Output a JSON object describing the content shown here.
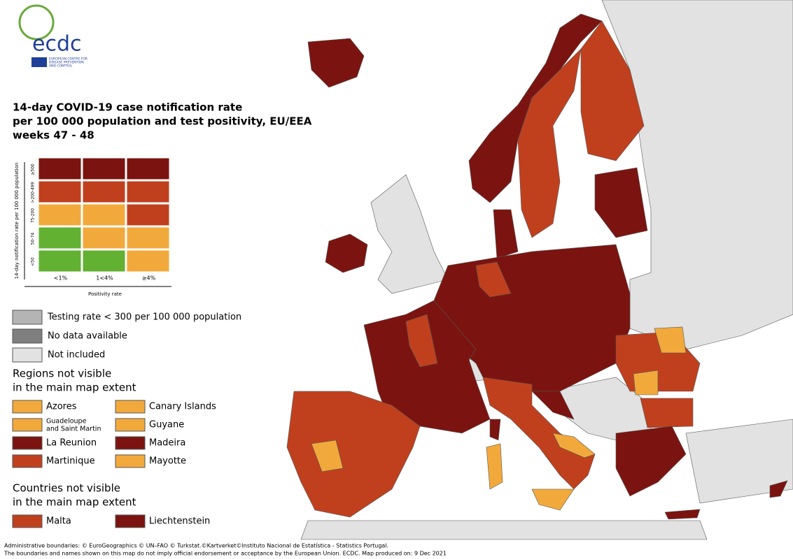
{
  "logo": {
    "name": "ecdc",
    "subtitle": [
      "EUROPEAN CENTRE FOR",
      "DISEASE PREVENTION",
      "AND CONTROL"
    ]
  },
  "title": [
    "14-day COVID-19 case notification rate",
    "per 100 000 population and test positivity, EU/EEA",
    "weeks 47 - 48"
  ],
  "matrix": {
    "y_label": "14-day notification rate per 100 000 population",
    "x_label": "Positivity rate",
    "columns": [
      "<1%",
      "1<4%",
      "≥4%"
    ],
    "rows": [
      {
        "label": "≥500",
        "colors": [
          "#7b1410",
          "#7b1410",
          "#7b1410"
        ]
      },
      {
        "label": ">200-499",
        "colors": [
          "#c0401e",
          "#c0401e",
          "#c0401e"
        ]
      },
      {
        "label": "75-200",
        "colors": [
          "#f2a93b",
          "#f2a93b",
          "#c0401e"
        ]
      },
      {
        "label": "50-74",
        "colors": [
          "#63b132",
          "#f2a93b",
          "#f2a93b"
        ]
      },
      {
        "label": "<50",
        "colors": [
          "#63b132",
          "#63b132",
          "#f2a93b"
        ]
      }
    ]
  },
  "legend": [
    {
      "label": "Testing rate < 300 per 100 000 population",
      "color": "#b4b4b4"
    },
    {
      "label": "No data available",
      "color": "#7f7f7f"
    },
    {
      "label": "Not included",
      "color": "#e2e2e2"
    }
  ],
  "regions": {
    "heading": [
      "Regions not visible",
      "in the main map extent"
    ],
    "items": [
      {
        "label": "Azores",
        "color": "#f2a93b"
      },
      {
        "label": "Canary Islands",
        "color": "#f2a93b"
      },
      {
        "label": [
          "Guadeloupe",
          "and Saint Martin"
        ],
        "color": "#f2a93b"
      },
      {
        "label": "Guyane",
        "color": "#f2a93b"
      },
      {
        "label": "La Reunion",
        "color": "#7b1410"
      },
      {
        "label": "Madeira",
        "color": "#7b1410"
      },
      {
        "label": "Martinique",
        "color": "#c0401e"
      },
      {
        "label": "Mayotte",
        "color": "#f2a93b"
      }
    ]
  },
  "countries": {
    "heading": [
      "Countries not visible",
      "in the main map extent"
    ],
    "items": [
      {
        "label": "Malta",
        "color": "#c0401e"
      },
      {
        "label": "Liechtenstein",
        "color": "#7b1410"
      }
    ]
  },
  "footer": [
    "Administrative boundaries: © EuroGeographics © UN–FAO © Turkstat.©Kartverket©Instituto Nacional de Estatística - Statistics Portugal.",
    "The boundaries and names shown on this map do not imply official endorsement or acceptance by the European Union. ECDC. Map produced on: 9 Dec 2021"
  ]
}
